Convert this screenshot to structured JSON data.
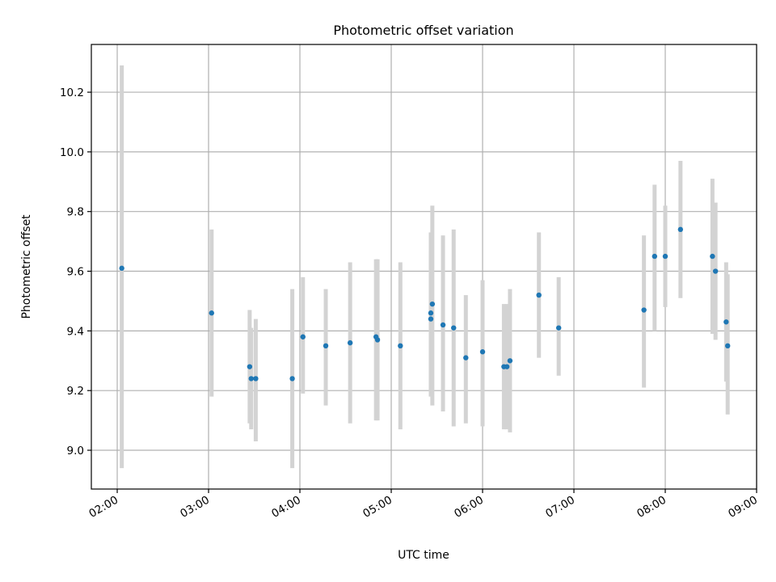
{
  "chart_data": {
    "type": "scatter",
    "title": "Photometric offset variation",
    "xlabel": "UTC time",
    "ylabel": "Photometric offset",
    "x_ticks": [
      "02:00",
      "03:00",
      "04:00",
      "05:00",
      "06:00",
      "07:00",
      "08:00",
      "09:00"
    ],
    "y_ticks": [
      "9.0",
      "9.2",
      "9.4",
      "9.6",
      "9.8",
      "10.0",
      "10.2"
    ],
    "xlim": [
      "01:43",
      "09:00"
    ],
    "ylim": [
      8.87,
      10.36
    ],
    "grid": true,
    "colors": {
      "points": "#1f77b4",
      "errorbars": "#d3d3d3",
      "grid": "#b0b0b0"
    },
    "points": [
      {
        "x": "02:03",
        "y": 9.61,
        "lo": 8.94,
        "hi": 10.29
      },
      {
        "x": "03:02",
        "y": 9.46,
        "lo": 9.18,
        "hi": 9.74
      },
      {
        "x": "03:27",
        "y": 9.28,
        "lo": 9.09,
        "hi": 9.47
      },
      {
        "x": "03:28",
        "y": 9.24,
        "lo": 9.07,
        "hi": 9.41
      },
      {
        "x": "03:31",
        "y": 9.24,
        "lo": 9.03,
        "hi": 9.44
      },
      {
        "x": "03:55",
        "y": 9.24,
        "lo": 8.94,
        "hi": 9.54
      },
      {
        "x": "04:02",
        "y": 9.38,
        "lo": 9.19,
        "hi": 9.58
      },
      {
        "x": "04:17",
        "y": 9.35,
        "lo": 9.15,
        "hi": 9.54
      },
      {
        "x": "04:33",
        "y": 9.36,
        "lo": 9.09,
        "hi": 9.63
      },
      {
        "x": "04:50",
        "y": 9.38,
        "lo": 9.1,
        "hi": 9.64
      },
      {
        "x": "04:51",
        "y": 9.37,
        "lo": 9.1,
        "hi": 9.64
      },
      {
        "x": "05:06",
        "y": 9.35,
        "lo": 9.07,
        "hi": 9.63
      },
      {
        "x": "05:26",
        "y": 9.44,
        "lo": 9.2,
        "hi": 9.67
      },
      {
        "x": "05:26",
        "y": 9.46,
        "lo": 9.18,
        "hi": 9.73
      },
      {
        "x": "05:27",
        "y": 9.49,
        "lo": 9.15,
        "hi": 9.82
      },
      {
        "x": "05:34",
        "y": 9.42,
        "lo": 9.13,
        "hi": 9.72
      },
      {
        "x": "05:41",
        "y": 9.41,
        "lo": 9.08,
        "hi": 9.74
      },
      {
        "x": "05:49",
        "y": 9.31,
        "lo": 9.09,
        "hi": 9.52
      },
      {
        "x": "06:00",
        "y": 9.33,
        "lo": 9.08,
        "hi": 9.57
      },
      {
        "x": "06:14",
        "y": 9.28,
        "lo": 9.07,
        "hi": 9.49
      },
      {
        "x": "06:16",
        "y": 9.28,
        "lo": 9.07,
        "hi": 9.49
      },
      {
        "x": "06:18",
        "y": 9.3,
        "lo": 9.06,
        "hi": 9.54
      },
      {
        "x": "06:37",
        "y": 9.52,
        "lo": 9.31,
        "hi": 9.73
      },
      {
        "x": "06:50",
        "y": 9.41,
        "lo": 9.25,
        "hi": 9.58
      },
      {
        "x": "07:46",
        "y": 9.47,
        "lo": 9.21,
        "hi": 9.72
      },
      {
        "x": "07:53",
        "y": 9.65,
        "lo": 9.4,
        "hi": 9.89
      },
      {
        "x": "08:00",
        "y": 9.65,
        "lo": 9.48,
        "hi": 9.82
      },
      {
        "x": "08:10",
        "y": 9.74,
        "lo": 9.51,
        "hi": 9.97
      },
      {
        "x": "08:31",
        "y": 9.65,
        "lo": 9.39,
        "hi": 9.91
      },
      {
        "x": "08:33",
        "y": 9.6,
        "lo": 9.37,
        "hi": 9.83
      },
      {
        "x": "08:40",
        "y": 9.43,
        "lo": 9.23,
        "hi": 9.63
      },
      {
        "x": "08:41",
        "y": 9.35,
        "lo": 9.12,
        "hi": 9.59
      }
    ]
  }
}
